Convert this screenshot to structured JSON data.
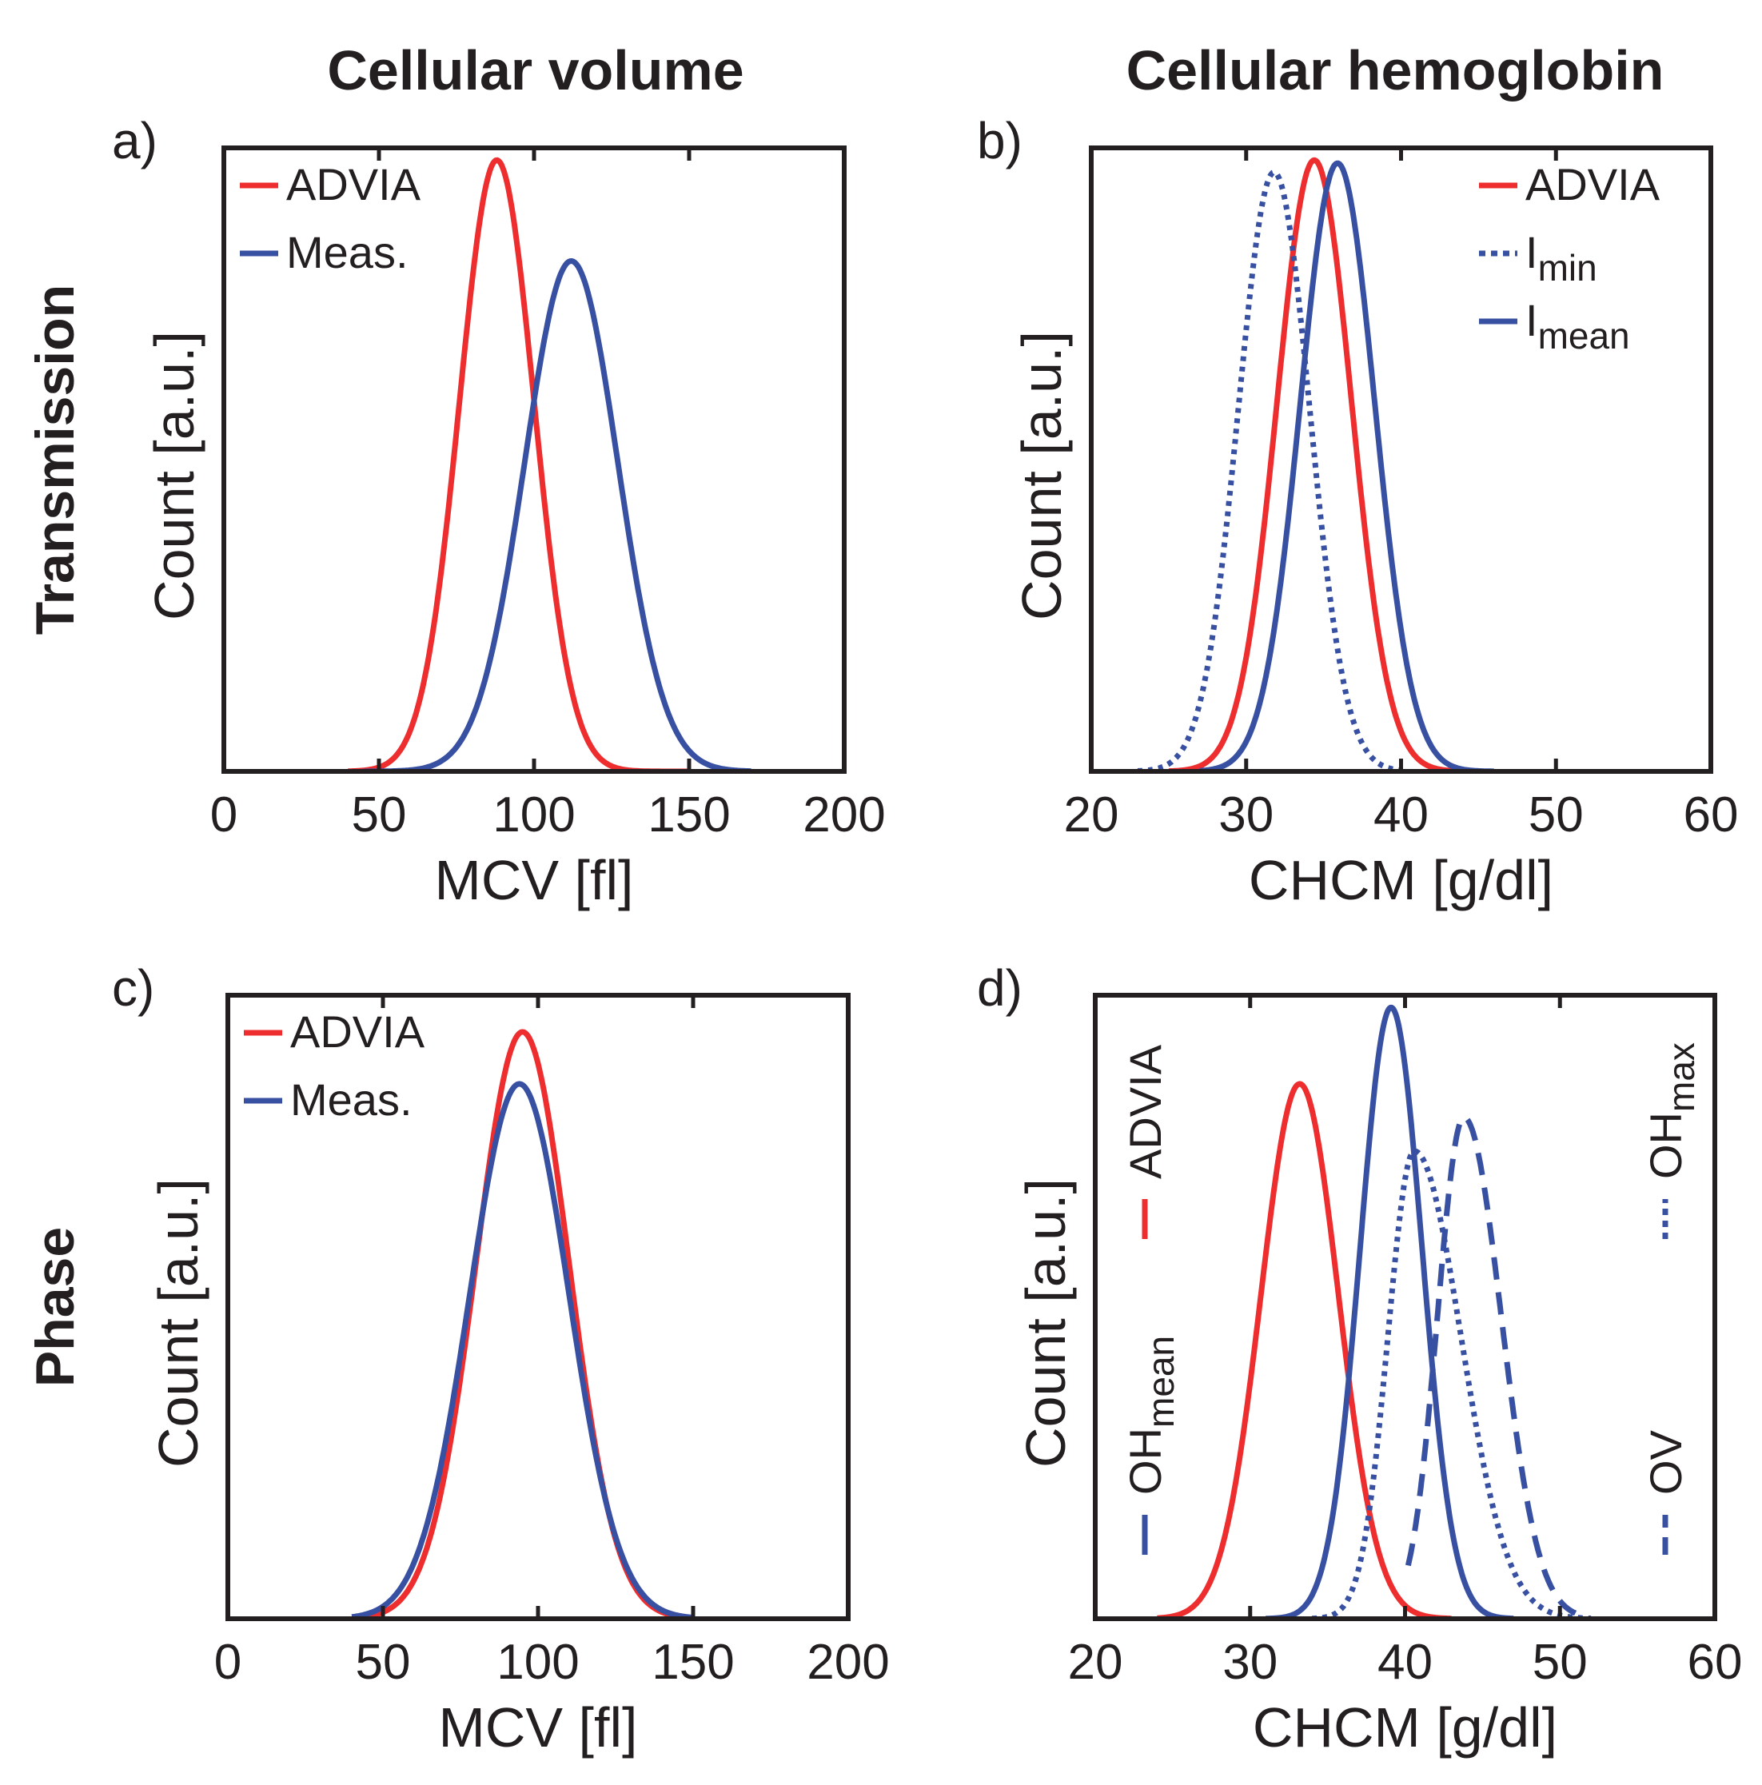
{
  "figure": {
    "column_titles": [
      "Cellular volume",
      "Cellular hemoglobin"
    ],
    "row_titles": [
      "Transmission",
      "Phase"
    ],
    "colors": {
      "red": "#ee2e2e",
      "blue": "#3850a2",
      "ink": "#231f20"
    }
  },
  "chart_data": [
    {
      "id": "a",
      "panel_label": "a)",
      "type": "line",
      "xlabel": "MCV [fl]",
      "ylabel": "Count [a.u.]",
      "xlim": [
        0,
        200
      ],
      "ylim": [
        0,
        1.02
      ],
      "xticks": [
        0,
        50,
        100,
        150,
        200
      ],
      "legend_position": "top-left",
      "legend_layout": "horizontal",
      "series": [
        {
          "name": "ADVIA",
          "label_main": "ADVIA",
          "label_sub": "",
          "color": "#ee2e2e",
          "dash": "solid",
          "model": "gaussian",
          "mean": 88,
          "sd": 12,
          "amp": 1.0,
          "xmin": 40,
          "xmax": 150
        },
        {
          "name": "Meas.",
          "label_main": "Meas.",
          "label_sub": "",
          "color": "#3850a2",
          "dash": "solid",
          "model": "gaussian",
          "mean": 112,
          "sd": 15,
          "amp": 0.835,
          "xmin": 45,
          "xmax": 170
        }
      ]
    },
    {
      "id": "b",
      "panel_label": "b)",
      "type": "line",
      "xlabel": "CHCM [g/dl]",
      "ylabel": "Count [a.u.]",
      "xlim": [
        20,
        60
      ],
      "ylim": [
        0,
        1.02
      ],
      "xticks": [
        20,
        30,
        40,
        50,
        60
      ],
      "legend_position": "top-right",
      "legend_layout": "horizontal",
      "series": [
        {
          "name": "ADVIA",
          "label_main": "ADVIA",
          "label_sub": "",
          "color": "#ee2e2e",
          "dash": "solid",
          "model": "gaussian",
          "mean": 34.4,
          "sd": 2.4,
          "amp": 1.0,
          "xmin": 25,
          "xmax": 45
        },
        {
          "name": "Imin",
          "label_main": "I",
          "label_sub": "min",
          "color": "#3850a2",
          "dash": "dotted",
          "model": "gaussian",
          "mean": 31.8,
          "sd": 2.3,
          "amp": 0.98,
          "xmin": 23,
          "xmax": 40
        },
        {
          "name": "Imean",
          "label_main": "I",
          "label_sub": "mean",
          "color": "#3850a2",
          "dash": "solid",
          "model": "gaussian",
          "mean": 35.9,
          "sd": 2.4,
          "amp": 0.995,
          "xmin": 27,
          "xmax": 46
        }
      ]
    },
    {
      "id": "c",
      "panel_label": "c)",
      "type": "line",
      "xlabel": "MCV [fl]",
      "ylabel": "Count [a.u.]",
      "xlim": [
        0,
        200
      ],
      "ylim": [
        0,
        1.02
      ],
      "xticks": [
        0,
        50,
        100,
        150,
        200
      ],
      "legend_position": "top-left",
      "legend_layout": "horizontal",
      "series": [
        {
          "name": "ADVIA",
          "label_main": "ADVIA",
          "label_sub": "",
          "color": "#ee2e2e",
          "dash": "solid",
          "model": "gaussian",
          "mean": 95,
          "sd": 15,
          "amp": 0.96,
          "xmin": 40,
          "xmax": 150
        },
        {
          "name": "Meas.",
          "label_main": "Meas.",
          "label_sub": "",
          "color": "#3850a2",
          "dash": "solid",
          "model": "gaussian",
          "mean": 94,
          "sd": 16,
          "amp": 0.875,
          "xmin": 40,
          "xmax": 150
        }
      ]
    },
    {
      "id": "d",
      "panel_label": "d)",
      "type": "line",
      "xlabel": "CHCM [g/dl]",
      "ylabel": "Count [a.u.]",
      "xlim": [
        20,
        60
      ],
      "ylim": [
        0,
        1.02
      ],
      "xticks": [
        20,
        30,
        40,
        50,
        60
      ],
      "legend_position": "left and right, rotated",
      "legend_layout": "vertical",
      "series": [
        {
          "name": "ADVIA",
          "label_main": "ADVIA",
          "label_sub": "",
          "color": "#ee2e2e",
          "dash": "solid",
          "model": "gaussian",
          "mean": 33.2,
          "sd": 2.5,
          "amp": 0.875,
          "xmin": 24,
          "xmax": 43,
          "legend_side": "left",
          "legend_order": 0
        },
        {
          "name": "OHmean",
          "label_main": "OH",
          "label_sub": "mean",
          "color": "#3850a2",
          "dash": "solid",
          "model": "gaussian",
          "mean": 39.1,
          "sd": 2.0,
          "amp": 1.0,
          "xmin": 31,
          "xmax": 47,
          "legend_side": "left",
          "legend_order": 1
        },
        {
          "name": "OHmax",
          "label_main": "OH",
          "label_sub": "max",
          "color": "#3850a2",
          "dash": "dotted",
          "model": "piecewise",
          "mean": 40.6,
          "sd_left": 1.7,
          "sd_right": 3.0,
          "amp": 0.765,
          "xmin": 34,
          "xmax": 52,
          "legend_side": "right",
          "legend_order": 0
        },
        {
          "name": "OV",
          "label_main": "OV",
          "label_sub": "",
          "color": "#3850a2",
          "dash": "dashed",
          "model": "piecewise",
          "mean": 43.8,
          "sd_left": 1.7,
          "sd_right": 2.4,
          "amp": 0.82,
          "xmin": 40.2,
          "xmax": 51,
          "legend_side": "right",
          "legend_order": 1
        }
      ]
    }
  ]
}
